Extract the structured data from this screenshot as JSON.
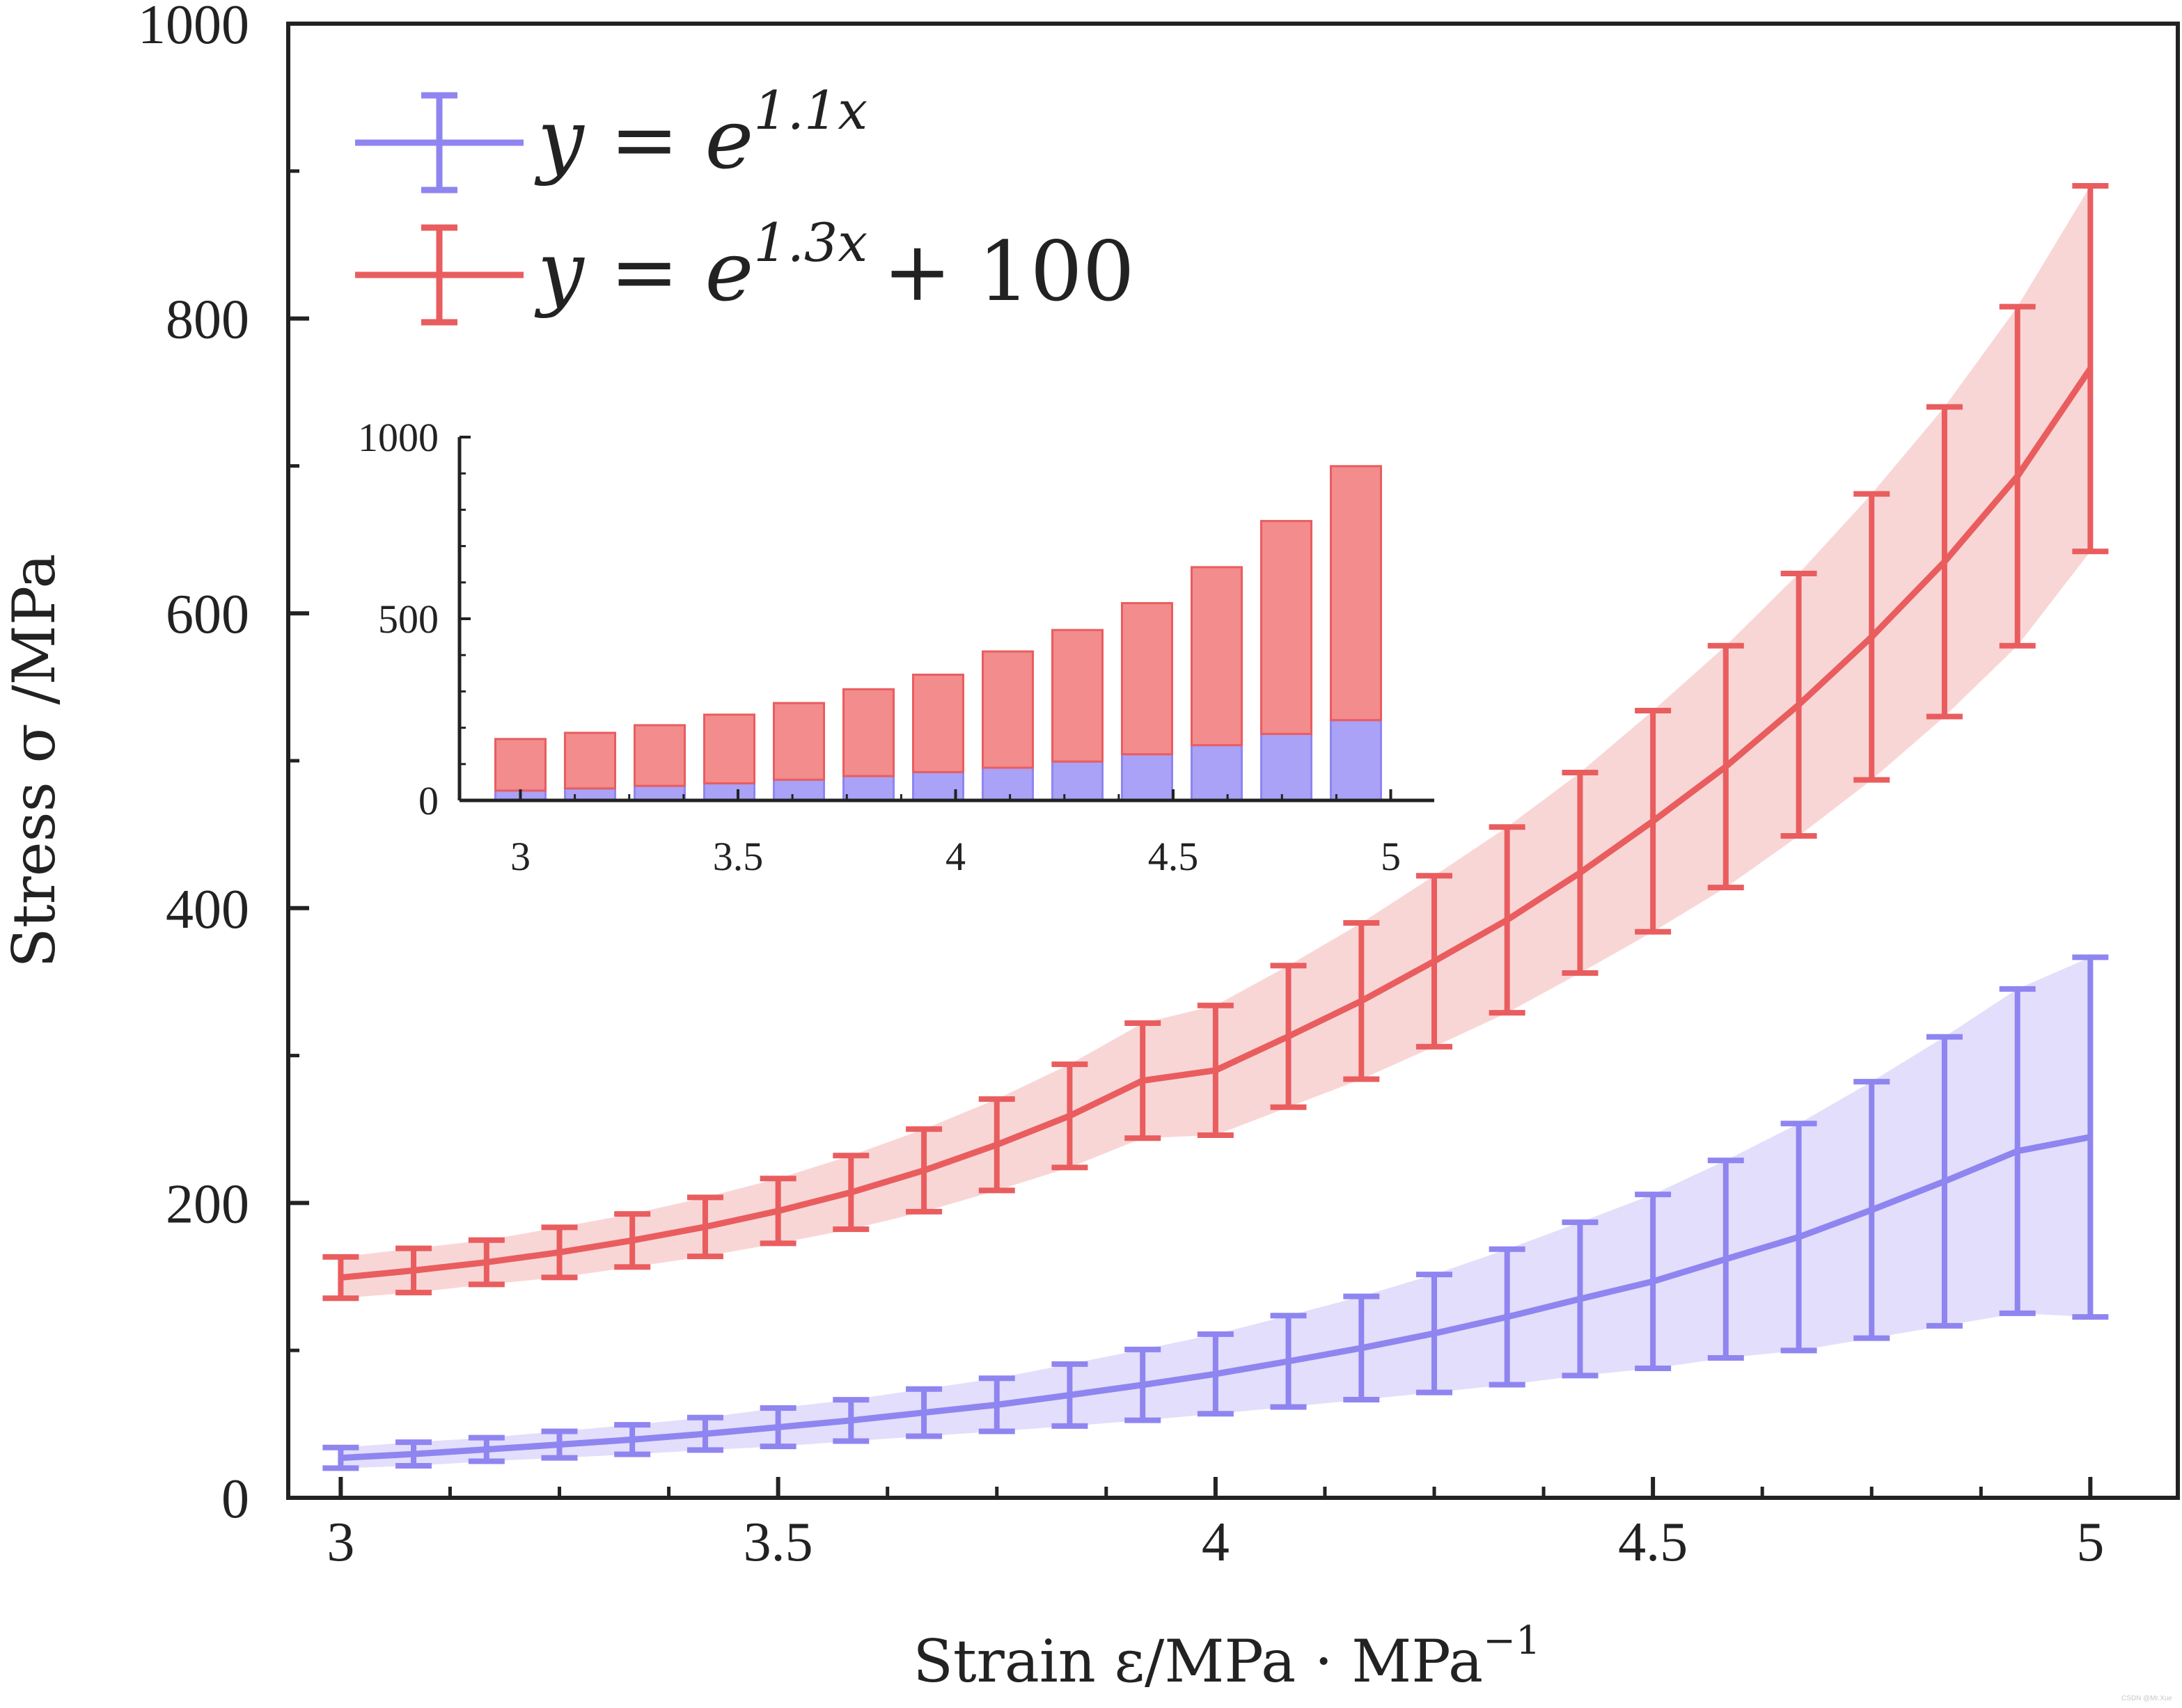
{
  "chart_data": [
    {
      "id": "main",
      "type": "line",
      "xlabel": "Strain ε/MPa · MPa",
      "xlabel_sup": "−1",
      "ylabel": "Stress σ /MPa",
      "xlim": [
        2.94,
        5.1
      ],
      "ylim": [
        0,
        1000
      ],
      "xticks": [
        "3",
        "3.5",
        "4",
        "4.5",
        "5"
      ],
      "yticks": [
        "0",
        "200",
        "400",
        "600",
        "800",
        "1000"
      ],
      "legend_position": "top-left",
      "x": [
        3.0,
        3.0833,
        3.1667,
        3.25,
        3.3333,
        3.4167,
        3.5,
        3.5833,
        3.6667,
        3.75,
        3.8333,
        3.9167,
        4.0,
        4.0833,
        4.1667,
        4.25,
        4.3333,
        4.4167,
        4.5,
        4.5833,
        4.6667,
        4.75,
        4.8333,
        4.9167,
        5.0
      ],
      "series": [
        {
          "name": "y = e",
          "name_sup": "1.1x",
          "color": "#8f85f0",
          "band_color": "#e3defb",
          "y": [
            27.1,
            29.7,
            32.8,
            36.1,
            39.5,
            43.4,
            47.9,
            52.5,
            57.8,
            63.1,
            69.7,
            76.6,
            84.0,
            92.6,
            101.6,
            111.5,
            122.7,
            134.9,
            146.8,
            161.9,
            176.9,
            195.3,
            214.7,
            235.2,
            244.7
          ],
          "err": [
            7,
            8,
            8,
            9,
            10,
            11,
            13,
            14,
            16,
            18,
            21,
            24,
            27,
            31,
            35,
            40,
            46,
            52,
            59,
            67,
            77,
            87,
            98,
            110,
            122
          ]
        },
        {
          "name": "y = e",
          "name_sup": "1.3x",
          "name_suffix": "+ 100",
          "color": "#e95d5f",
          "band_color": "#f9d6d6",
          "y": [
            149.4,
            154.2,
            159.8,
            166.5,
            174.6,
            183.8,
            194.6,
            207.2,
            222.1,
            239.5,
            259.1,
            283.0,
            290.0,
            313.0,
            337.0,
            364.0,
            392.0,
            424.0,
            459.0,
            496.0,
            538.0,
            584.0,
            635.0,
            693.0,
            766.0
          ],
          "err": [
            14,
            15,
            15,
            17,
            18,
            20,
            22,
            25,
            28,
            31,
            35,
            39,
            44,
            48,
            53,
            58,
            63,
            68,
            75,
            82,
            89,
            97,
            105,
            115,
            124
          ]
        }
      ]
    },
    {
      "id": "inset",
      "type": "bar",
      "stacked": true,
      "xlim": [
        2.86,
        5.1
      ],
      "ylim": [
        0,
        1000
      ],
      "xticks": [
        "3",
        "3.5",
        "4",
        "4.5",
        "5"
      ],
      "yticks": [
        "0",
        "500",
        "1000"
      ],
      "x": [
        3.0,
        3.16,
        3.32,
        3.48,
        3.64,
        3.8,
        3.96,
        4.12,
        4.28,
        4.44,
        4.6,
        4.76,
        4.92
      ],
      "series": [
        {
          "name": "",
          "color": "#a9a2f6",
          "edge": "#8f85f0",
          "values": [
            27,
            33,
            40,
            47,
            57,
            67,
            78,
            90,
            107,
            127,
            152,
            183,
            221
          ]
        },
        {
          "name": "",
          "color": "#f28c8d",
          "edge": "#e95d5f",
          "values": [
            142,
            153,
            167,
            189,
            211,
            239,
            268,
            320,
            362,
            416,
            490,
            586,
            699
          ]
        }
      ]
    }
  ],
  "watermark": "CSDN @Mr.Xue"
}
